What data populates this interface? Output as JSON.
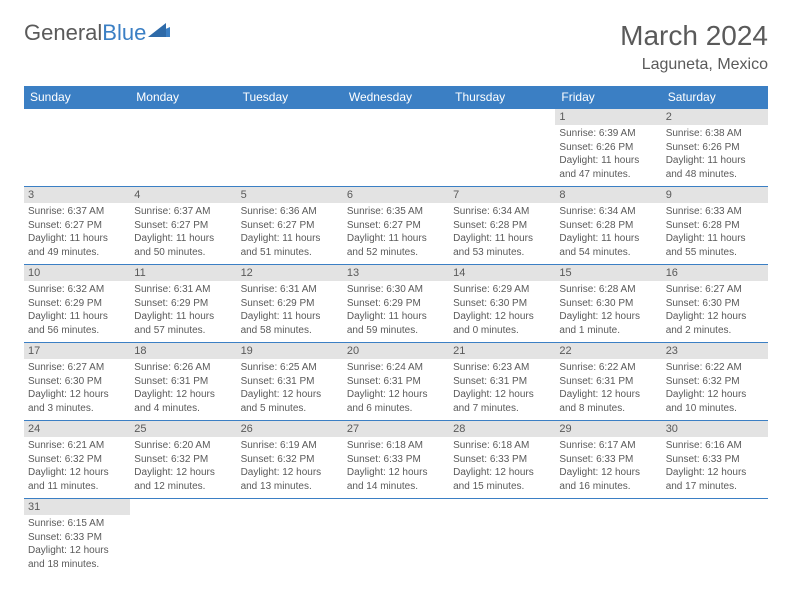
{
  "logo": {
    "text1": "General",
    "text2": "Blue"
  },
  "title": "March 2024",
  "location": "Laguneta, Mexico",
  "colors": {
    "header_bg": "#3b7fc4",
    "header_fg": "#ffffff",
    "daynum_bg": "#e3e3e3",
    "text": "#5a5a5a",
    "row_border": "#3b7fc4"
  },
  "weekdays": [
    "Sunday",
    "Monday",
    "Tuesday",
    "Wednesday",
    "Thursday",
    "Friday",
    "Saturday"
  ],
  "weeks": [
    [
      null,
      null,
      null,
      null,
      null,
      {
        "n": "1",
        "sunrise": "Sunrise: 6:39 AM",
        "sunset": "Sunset: 6:26 PM",
        "daylight": "Daylight: 11 hours and 47 minutes."
      },
      {
        "n": "2",
        "sunrise": "Sunrise: 6:38 AM",
        "sunset": "Sunset: 6:26 PM",
        "daylight": "Daylight: 11 hours and 48 minutes."
      }
    ],
    [
      {
        "n": "3",
        "sunrise": "Sunrise: 6:37 AM",
        "sunset": "Sunset: 6:27 PM",
        "daylight": "Daylight: 11 hours and 49 minutes."
      },
      {
        "n": "4",
        "sunrise": "Sunrise: 6:37 AM",
        "sunset": "Sunset: 6:27 PM",
        "daylight": "Daylight: 11 hours and 50 minutes."
      },
      {
        "n": "5",
        "sunrise": "Sunrise: 6:36 AM",
        "sunset": "Sunset: 6:27 PM",
        "daylight": "Daylight: 11 hours and 51 minutes."
      },
      {
        "n": "6",
        "sunrise": "Sunrise: 6:35 AM",
        "sunset": "Sunset: 6:27 PM",
        "daylight": "Daylight: 11 hours and 52 minutes."
      },
      {
        "n": "7",
        "sunrise": "Sunrise: 6:34 AM",
        "sunset": "Sunset: 6:28 PM",
        "daylight": "Daylight: 11 hours and 53 minutes."
      },
      {
        "n": "8",
        "sunrise": "Sunrise: 6:34 AM",
        "sunset": "Sunset: 6:28 PM",
        "daylight": "Daylight: 11 hours and 54 minutes."
      },
      {
        "n": "9",
        "sunrise": "Sunrise: 6:33 AM",
        "sunset": "Sunset: 6:28 PM",
        "daylight": "Daylight: 11 hours and 55 minutes."
      }
    ],
    [
      {
        "n": "10",
        "sunrise": "Sunrise: 6:32 AM",
        "sunset": "Sunset: 6:29 PM",
        "daylight": "Daylight: 11 hours and 56 minutes."
      },
      {
        "n": "11",
        "sunrise": "Sunrise: 6:31 AM",
        "sunset": "Sunset: 6:29 PM",
        "daylight": "Daylight: 11 hours and 57 minutes."
      },
      {
        "n": "12",
        "sunrise": "Sunrise: 6:31 AM",
        "sunset": "Sunset: 6:29 PM",
        "daylight": "Daylight: 11 hours and 58 minutes."
      },
      {
        "n": "13",
        "sunrise": "Sunrise: 6:30 AM",
        "sunset": "Sunset: 6:29 PM",
        "daylight": "Daylight: 11 hours and 59 minutes."
      },
      {
        "n": "14",
        "sunrise": "Sunrise: 6:29 AM",
        "sunset": "Sunset: 6:30 PM",
        "daylight": "Daylight: 12 hours and 0 minutes."
      },
      {
        "n": "15",
        "sunrise": "Sunrise: 6:28 AM",
        "sunset": "Sunset: 6:30 PM",
        "daylight": "Daylight: 12 hours and 1 minute."
      },
      {
        "n": "16",
        "sunrise": "Sunrise: 6:27 AM",
        "sunset": "Sunset: 6:30 PM",
        "daylight": "Daylight: 12 hours and 2 minutes."
      }
    ],
    [
      {
        "n": "17",
        "sunrise": "Sunrise: 6:27 AM",
        "sunset": "Sunset: 6:30 PM",
        "daylight": "Daylight: 12 hours and 3 minutes."
      },
      {
        "n": "18",
        "sunrise": "Sunrise: 6:26 AM",
        "sunset": "Sunset: 6:31 PM",
        "daylight": "Daylight: 12 hours and 4 minutes."
      },
      {
        "n": "19",
        "sunrise": "Sunrise: 6:25 AM",
        "sunset": "Sunset: 6:31 PM",
        "daylight": "Daylight: 12 hours and 5 minutes."
      },
      {
        "n": "20",
        "sunrise": "Sunrise: 6:24 AM",
        "sunset": "Sunset: 6:31 PM",
        "daylight": "Daylight: 12 hours and 6 minutes."
      },
      {
        "n": "21",
        "sunrise": "Sunrise: 6:23 AM",
        "sunset": "Sunset: 6:31 PM",
        "daylight": "Daylight: 12 hours and 7 minutes."
      },
      {
        "n": "22",
        "sunrise": "Sunrise: 6:22 AM",
        "sunset": "Sunset: 6:31 PM",
        "daylight": "Daylight: 12 hours and 8 minutes."
      },
      {
        "n": "23",
        "sunrise": "Sunrise: 6:22 AM",
        "sunset": "Sunset: 6:32 PM",
        "daylight": "Daylight: 12 hours and 10 minutes."
      }
    ],
    [
      {
        "n": "24",
        "sunrise": "Sunrise: 6:21 AM",
        "sunset": "Sunset: 6:32 PM",
        "daylight": "Daylight: 12 hours and 11 minutes."
      },
      {
        "n": "25",
        "sunrise": "Sunrise: 6:20 AM",
        "sunset": "Sunset: 6:32 PM",
        "daylight": "Daylight: 12 hours and 12 minutes."
      },
      {
        "n": "26",
        "sunrise": "Sunrise: 6:19 AM",
        "sunset": "Sunset: 6:32 PM",
        "daylight": "Daylight: 12 hours and 13 minutes."
      },
      {
        "n": "27",
        "sunrise": "Sunrise: 6:18 AM",
        "sunset": "Sunset: 6:33 PM",
        "daylight": "Daylight: 12 hours and 14 minutes."
      },
      {
        "n": "28",
        "sunrise": "Sunrise: 6:18 AM",
        "sunset": "Sunset: 6:33 PM",
        "daylight": "Daylight: 12 hours and 15 minutes."
      },
      {
        "n": "29",
        "sunrise": "Sunrise: 6:17 AM",
        "sunset": "Sunset: 6:33 PM",
        "daylight": "Daylight: 12 hours and 16 minutes."
      },
      {
        "n": "30",
        "sunrise": "Sunrise: 6:16 AM",
        "sunset": "Sunset: 6:33 PM",
        "daylight": "Daylight: 12 hours and 17 minutes."
      }
    ],
    [
      {
        "n": "31",
        "sunrise": "Sunrise: 6:15 AM",
        "sunset": "Sunset: 6:33 PM",
        "daylight": "Daylight: 12 hours and 18 minutes."
      },
      null,
      null,
      null,
      null,
      null,
      null
    ]
  ]
}
